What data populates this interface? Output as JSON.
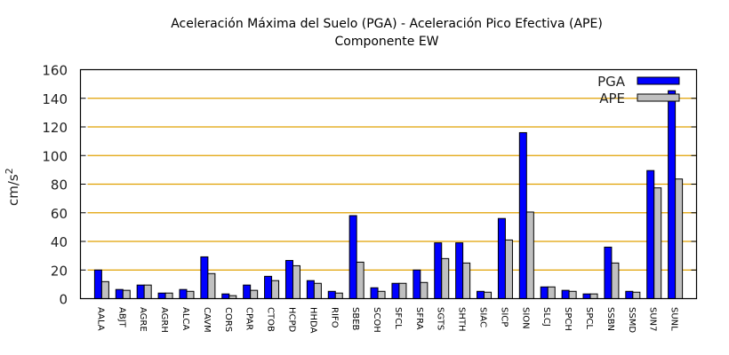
{
  "chart_data": {
    "type": "bar",
    "title": "Aceleración Máxima del Suelo (PGA) -  Aceleración Pico Efectiva (APE)",
    "subtitle": "Componente EW",
    "xlabel": "",
    "ylabel": "cm/s",
    "ylabel_superscript": "2",
    "ylim": [
      0,
      160
    ],
    "yticks": [
      "0",
      "20",
      "40",
      "60",
      "80",
      "100",
      "120",
      "140",
      "160"
    ],
    "grid": true,
    "legend_placement": "top-right",
    "categories": [
      "AALA",
      "ABJT",
      "AGRE",
      "AGRH",
      "ALCA",
      "CAVM",
      "CORS",
      "CPAR",
      "CTOB",
      "HCPD",
      "HHDA",
      "RIFO",
      "SBEB",
      "SCOH",
      "SFCL",
      "SFRA",
      "SGTS",
      "SHTH",
      "SIAC",
      "SICP",
      "SION",
      "SLCJ",
      "SPCH",
      "SPCL",
      "SSBN",
      "SSMD",
      "SUN7",
      "SUNL"
    ],
    "series": [
      {
        "name": "PGA",
        "color": "#0000ff",
        "values": [
          20,
          6.4,
          9.5,
          3.9,
          6.4,
          29.2,
          3.3,
          9.5,
          15.6,
          26.7,
          12.6,
          5.1,
          58,
          7.6,
          10.7,
          20,
          39,
          39,
          5.1,
          56,
          116,
          8.2,
          5.8,
          3.3,
          36,
          5.1,
          89.5,
          145.3
        ]
      },
      {
        "name": "APE",
        "color": "#c0c0c0",
        "values": [
          11.9,
          5.8,
          9.5,
          3.9,
          5.1,
          17.5,
          2.1,
          5.8,
          12.6,
          23,
          10.7,
          3.9,
          25.5,
          5.1,
          10.7,
          11.3,
          28,
          24.9,
          4.5,
          41,
          60.5,
          8.2,
          5.1,
          3.3,
          24.9,
          4.5,
          77.4,
          83.6
        ]
      }
    ],
    "grid_color": "#e0a000"
  }
}
